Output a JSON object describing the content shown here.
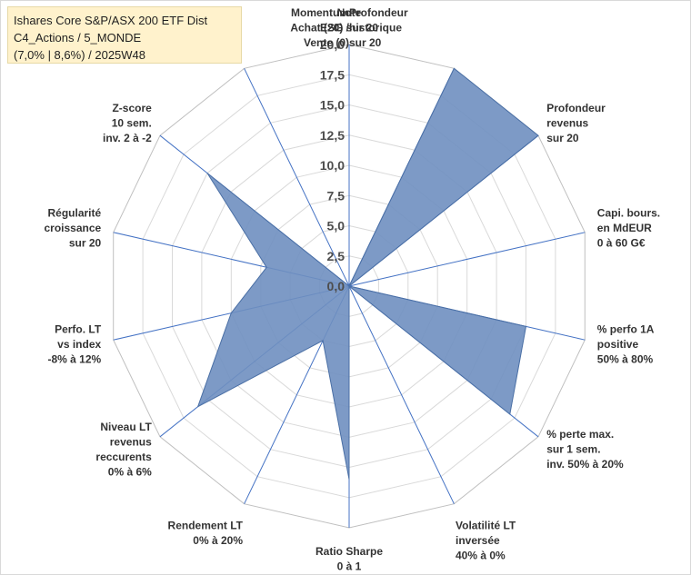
{
  "title": {
    "line1": "Ishares Core S&P/ASX 200 ETF Dist",
    "line2": "C4_Actions / 5_MONDE",
    "line3": "(7,0% | 8,6%) / 2025W48"
  },
  "chart_data": {
    "type": "radar",
    "rmax": 20,
    "ticks": [
      "0,0",
      "2,5",
      "5,0",
      "7,5",
      "10,0",
      "12,5",
      "15,0",
      "17,5",
      "20,0"
    ],
    "tick_values": [
      0,
      2.5,
      5,
      7.5,
      10,
      12.5,
      15,
      17.5,
      20
    ],
    "axes": [
      {
        "label": [
          "Note",
          "ESG sur 20"
        ],
        "value": 0
      },
      {
        "label": [
          "Profondeur",
          "historique",
          "sur 20"
        ],
        "value": 20
      },
      {
        "label": [
          "Profondeur",
          "revenus",
          "sur 20"
        ],
        "value": 20
      },
      {
        "label": [
          "Capi. bours.",
          "en MdEUR",
          "0 à 60 G€"
        ],
        "value": 0
      },
      {
        "label": [
          "% perfo 1A",
          "positive",
          "50% à 80%"
        ],
        "value": 15
      },
      {
        "label": [
          "% perte max.",
          "sur 1 sem.",
          "inv. 50% à 20%"
        ],
        "value": 17
      },
      {
        "label": [
          "Volatilité LT",
          "inversée",
          "40% à 0%"
        ],
        "value": 0
      },
      {
        "label": [
          "Ratio Sharpe",
          "0 à 1"
        ],
        "value": 16
      },
      {
        "label": [
          "Rendement LT",
          "0% à 20%"
        ],
        "value": 5
      },
      {
        "label": [
          "Niveau LT",
          "revenus",
          "reccurents",
          "0% à 6%"
        ],
        "value": 16
      },
      {
        "label": [
          "Perfo. LT",
          "vs index",
          "-8% à 12%"
        ],
        "value": 10
      },
      {
        "label": [
          "Régularité",
          "croissance",
          "sur 20"
        ],
        "value": 7
      },
      {
        "label": [
          "Z-score",
          "10 sem.",
          "inv. 2 à -2"
        ],
        "value": 15
      },
      {
        "label": [
          "Momentum",
          "Achat (20) /",
          "Vente (0)"
        ],
        "value": 0
      }
    ],
    "colors": {
      "fill": "#6f8fc0",
      "stroke": "#4a6fa5",
      "spoke": "#4472c4",
      "grid": "#d9d9d9"
    },
    "legend": "none"
  }
}
